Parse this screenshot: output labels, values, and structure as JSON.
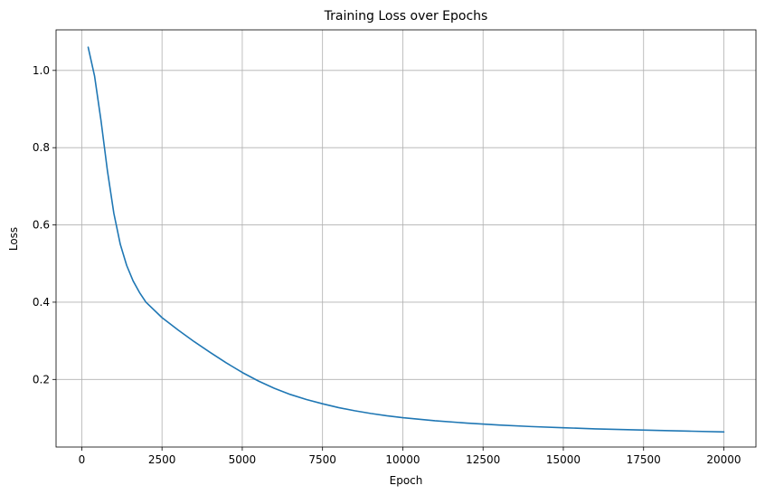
{
  "chart_data": {
    "type": "line",
    "title": "Training Loss over Epochs",
    "xlabel": "Epoch",
    "ylabel": "Loss",
    "xlim": [
      -800,
      21000
    ],
    "ylim": [
      0.025,
      1.105
    ],
    "xticks": [
      0,
      2500,
      5000,
      7500,
      10000,
      12500,
      15000,
      17500,
      20000
    ],
    "xtick_labels": [
      "0",
      "2500",
      "5000",
      "7500",
      "10000",
      "12500",
      "15000",
      "17500",
      "20000"
    ],
    "yticks": [
      0.2,
      0.4,
      0.6,
      0.8,
      1.0
    ],
    "ytick_labels": [
      "0.2",
      "0.4",
      "0.6",
      "0.8",
      "1.0"
    ],
    "grid": true,
    "colors": {
      "line": "#1f77b4",
      "grid": "#b0b0b0",
      "axes": "#000000"
    },
    "series": [
      {
        "x": [
          200,
          400,
          600,
          800,
          1000,
          1200,
          1400,
          1600,
          1800,
          2000,
          2500,
          3000,
          3500,
          4000,
          4500,
          5000,
          5500,
          6000,
          6500,
          7000,
          7500,
          8000,
          8500,
          9000,
          9500,
          10000,
          11000,
          12000,
          13000,
          14000,
          15000,
          16000,
          17000,
          18000,
          19000,
          20000
        ],
        "y": [
          1.06,
          0.985,
          0.87,
          0.74,
          0.63,
          0.55,
          0.495,
          0.455,
          0.425,
          0.4,
          0.36,
          0.328,
          0.298,
          0.27,
          0.243,
          0.218,
          0.196,
          0.177,
          0.161,
          0.148,
          0.137,
          0.127,
          0.119,
          0.112,
          0.106,
          0.101,
          0.093,
          0.087,
          0.082,
          0.078,
          0.075,
          0.072,
          0.07,
          0.068,
          0.066,
          0.064
        ]
      }
    ]
  }
}
